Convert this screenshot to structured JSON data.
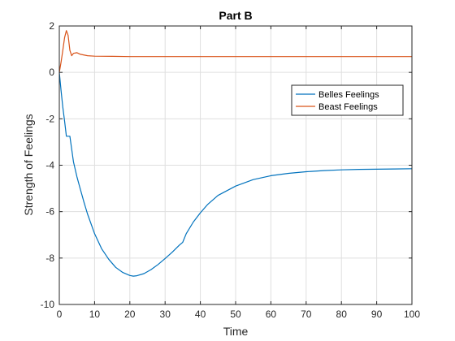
{
  "chart_data": {
    "type": "line",
    "title": "Part B",
    "xlabel": "Time",
    "ylabel": "Strength of Feelings",
    "xlim": [
      0,
      100
    ],
    "ylim": [
      -10,
      2
    ],
    "xticks": [
      0,
      10,
      20,
      30,
      40,
      50,
      60,
      70,
      80,
      90,
      100
    ],
    "yticks": [
      -10,
      -8,
      -6,
      -4,
      -2,
      0,
      2
    ],
    "grid": true,
    "legend_position": "top-right",
    "series": [
      {
        "name": "Belles Feelings",
        "color": "#0072BD",
        "x": [
          0,
          0.5,
          1,
          1.5,
          2,
          3,
          4,
          5,
          6,
          7,
          8,
          10,
          12,
          14,
          16,
          18,
          20,
          21,
          22,
          24,
          26,
          28,
          30,
          32,
          34,
          35,
          36,
          38,
          40,
          42,
          45,
          50,
          55,
          60,
          65,
          70,
          75,
          80,
          85,
          90,
          95,
          100
        ],
        "y": [
          0,
          -0.8,
          -1.5,
          -2.1,
          -2.75,
          -2.75,
          -3.85,
          -4.5,
          -5.05,
          -5.6,
          -6.1,
          -6.95,
          -7.6,
          -8.05,
          -8.4,
          -8.62,
          -8.75,
          -8.78,
          -8.76,
          -8.67,
          -8.5,
          -8.28,
          -8.02,
          -7.75,
          -7.45,
          -7.32,
          -6.95,
          -6.45,
          -6.05,
          -5.7,
          -5.3,
          -4.9,
          -4.62,
          -4.45,
          -4.35,
          -4.28,
          -4.23,
          -4.2,
          -4.18,
          -4.17,
          -4.16,
          -4.15
        ]
      },
      {
        "name": "Beast Feelings",
        "color": "#D95319",
        "x": [
          0,
          0.5,
          1,
          1.5,
          2,
          2.5,
          3,
          3.5,
          4,
          5,
          6,
          8,
          10,
          15,
          20,
          30,
          40,
          50,
          60,
          70,
          80,
          90,
          100
        ],
        "y": [
          0,
          0.45,
          0.95,
          1.5,
          1.8,
          1.6,
          0.95,
          0.72,
          0.82,
          0.85,
          0.78,
          0.72,
          0.7,
          0.69,
          0.68,
          0.68,
          0.68,
          0.68,
          0.68,
          0.68,
          0.68,
          0.68,
          0.68
        ]
      }
    ]
  }
}
